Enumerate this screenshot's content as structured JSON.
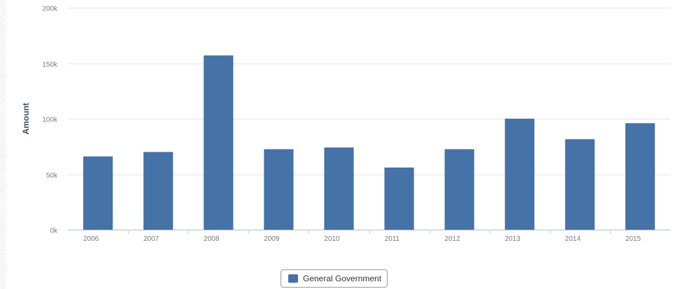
{
  "chart_data": {
    "type": "bar",
    "categories": [
      "2006",
      "2007",
      "2008",
      "2009",
      "2010",
      "2011",
      "2012",
      "2013",
      "2014",
      "2015"
    ],
    "series": [
      {
        "name": "General Government",
        "values": [
          66000,
          70000,
          157000,
          72500,
          74000,
          56000,
          72500,
          100000,
          81500,
          96000
        ],
        "color": "#4572a7"
      }
    ],
    "ylabel": "Amount",
    "xlabel": "",
    "title": "",
    "ylim": [
      0,
      200000
    ],
    "yticks": [
      0,
      50000,
      100000,
      150000,
      200000
    ],
    "ytick_labels": [
      "0k",
      "50k",
      "100k",
      "150k",
      "200k"
    ],
    "grid": true,
    "legend_position": "bottom-center"
  }
}
